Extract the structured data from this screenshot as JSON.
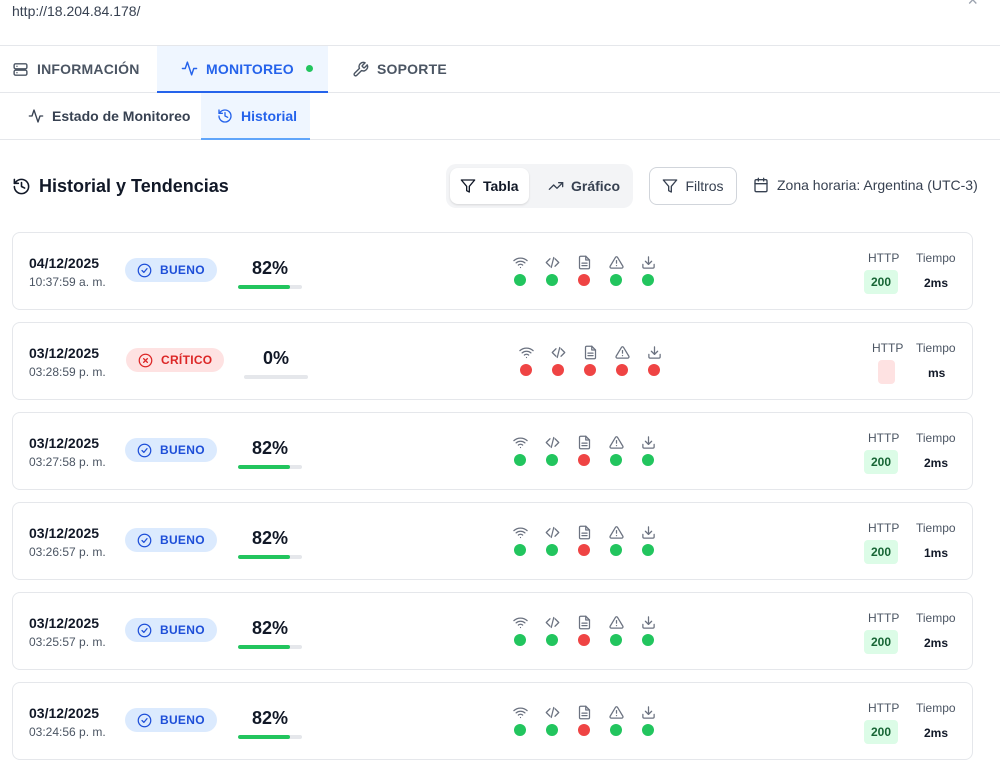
{
  "url": "http://18.204.84.178/",
  "tabs": [
    {
      "label": "INFORMACIÓN",
      "icon": "server-icon",
      "active": false
    },
    {
      "label": "MONITOREO",
      "icon": "activity-icon",
      "active": true,
      "indicator_color": "#22c55e"
    },
    {
      "label": "SOPORTE",
      "icon": "wrench-icon",
      "active": false
    }
  ],
  "subtabs": [
    {
      "label": "Estado de Monitoreo",
      "icon": "activity-icon",
      "active": false
    },
    {
      "label": "Historial",
      "icon": "history-icon",
      "active": true
    }
  ],
  "section": {
    "title": "Historial y Tendencias",
    "view_toggle": {
      "table_label": "Tabla",
      "chart_label": "Gráfico",
      "selected": "Tabla"
    },
    "filters_label": "Filtros",
    "timezone_label": "Zona horaria: Argentina (UTC-3)"
  },
  "columns": {
    "http_label": "HTTP",
    "time_label": "Tiempo"
  },
  "check_icons": [
    "wifi-icon",
    "code-icon",
    "file-icon",
    "alert-triangle-icon",
    "download-icon"
  ],
  "colors": {
    "accent": "#2563eb",
    "ok": "#22c55e",
    "fail": "#ef4444",
    "good_badge_bg": "#dbeafe",
    "critical_badge_bg": "#fee2e2"
  },
  "records": [
    {
      "date": "04/12/2025",
      "time": "10:37:59 a. m.",
      "status": "BUENO",
      "status_type": "good",
      "score": "82%",
      "score_value": 82,
      "checks": [
        true,
        true,
        false,
        true,
        true
      ],
      "http": "200",
      "response_time": "2ms"
    },
    {
      "date": "03/12/2025",
      "time": "03:28:59 p. m.",
      "status": "CRÍTICO",
      "status_type": "critical",
      "score": "0%",
      "score_value": 0,
      "checks": [
        false,
        false,
        false,
        false,
        false
      ],
      "http": "",
      "response_time": "ms"
    },
    {
      "date": "03/12/2025",
      "time": "03:27:58 p. m.",
      "status": "BUENO",
      "status_type": "good",
      "score": "82%",
      "score_value": 82,
      "checks": [
        true,
        true,
        false,
        true,
        true
      ],
      "http": "200",
      "response_time": "2ms"
    },
    {
      "date": "03/12/2025",
      "time": "03:26:57 p. m.",
      "status": "BUENO",
      "status_type": "good",
      "score": "82%",
      "score_value": 82,
      "checks": [
        true,
        true,
        false,
        true,
        true
      ],
      "http": "200",
      "response_time": "1ms"
    },
    {
      "date": "03/12/2025",
      "time": "03:25:57 p. m.",
      "status": "BUENO",
      "status_type": "good",
      "score": "82%",
      "score_value": 82,
      "checks": [
        true,
        true,
        false,
        true,
        true
      ],
      "http": "200",
      "response_time": "2ms"
    },
    {
      "date": "03/12/2025",
      "time": "03:24:56 p. m.",
      "status": "BUENO",
      "status_type": "good",
      "score": "82%",
      "score_value": 82,
      "checks": [
        true,
        true,
        false,
        true,
        true
      ],
      "http": "200",
      "response_time": "2ms"
    }
  ]
}
